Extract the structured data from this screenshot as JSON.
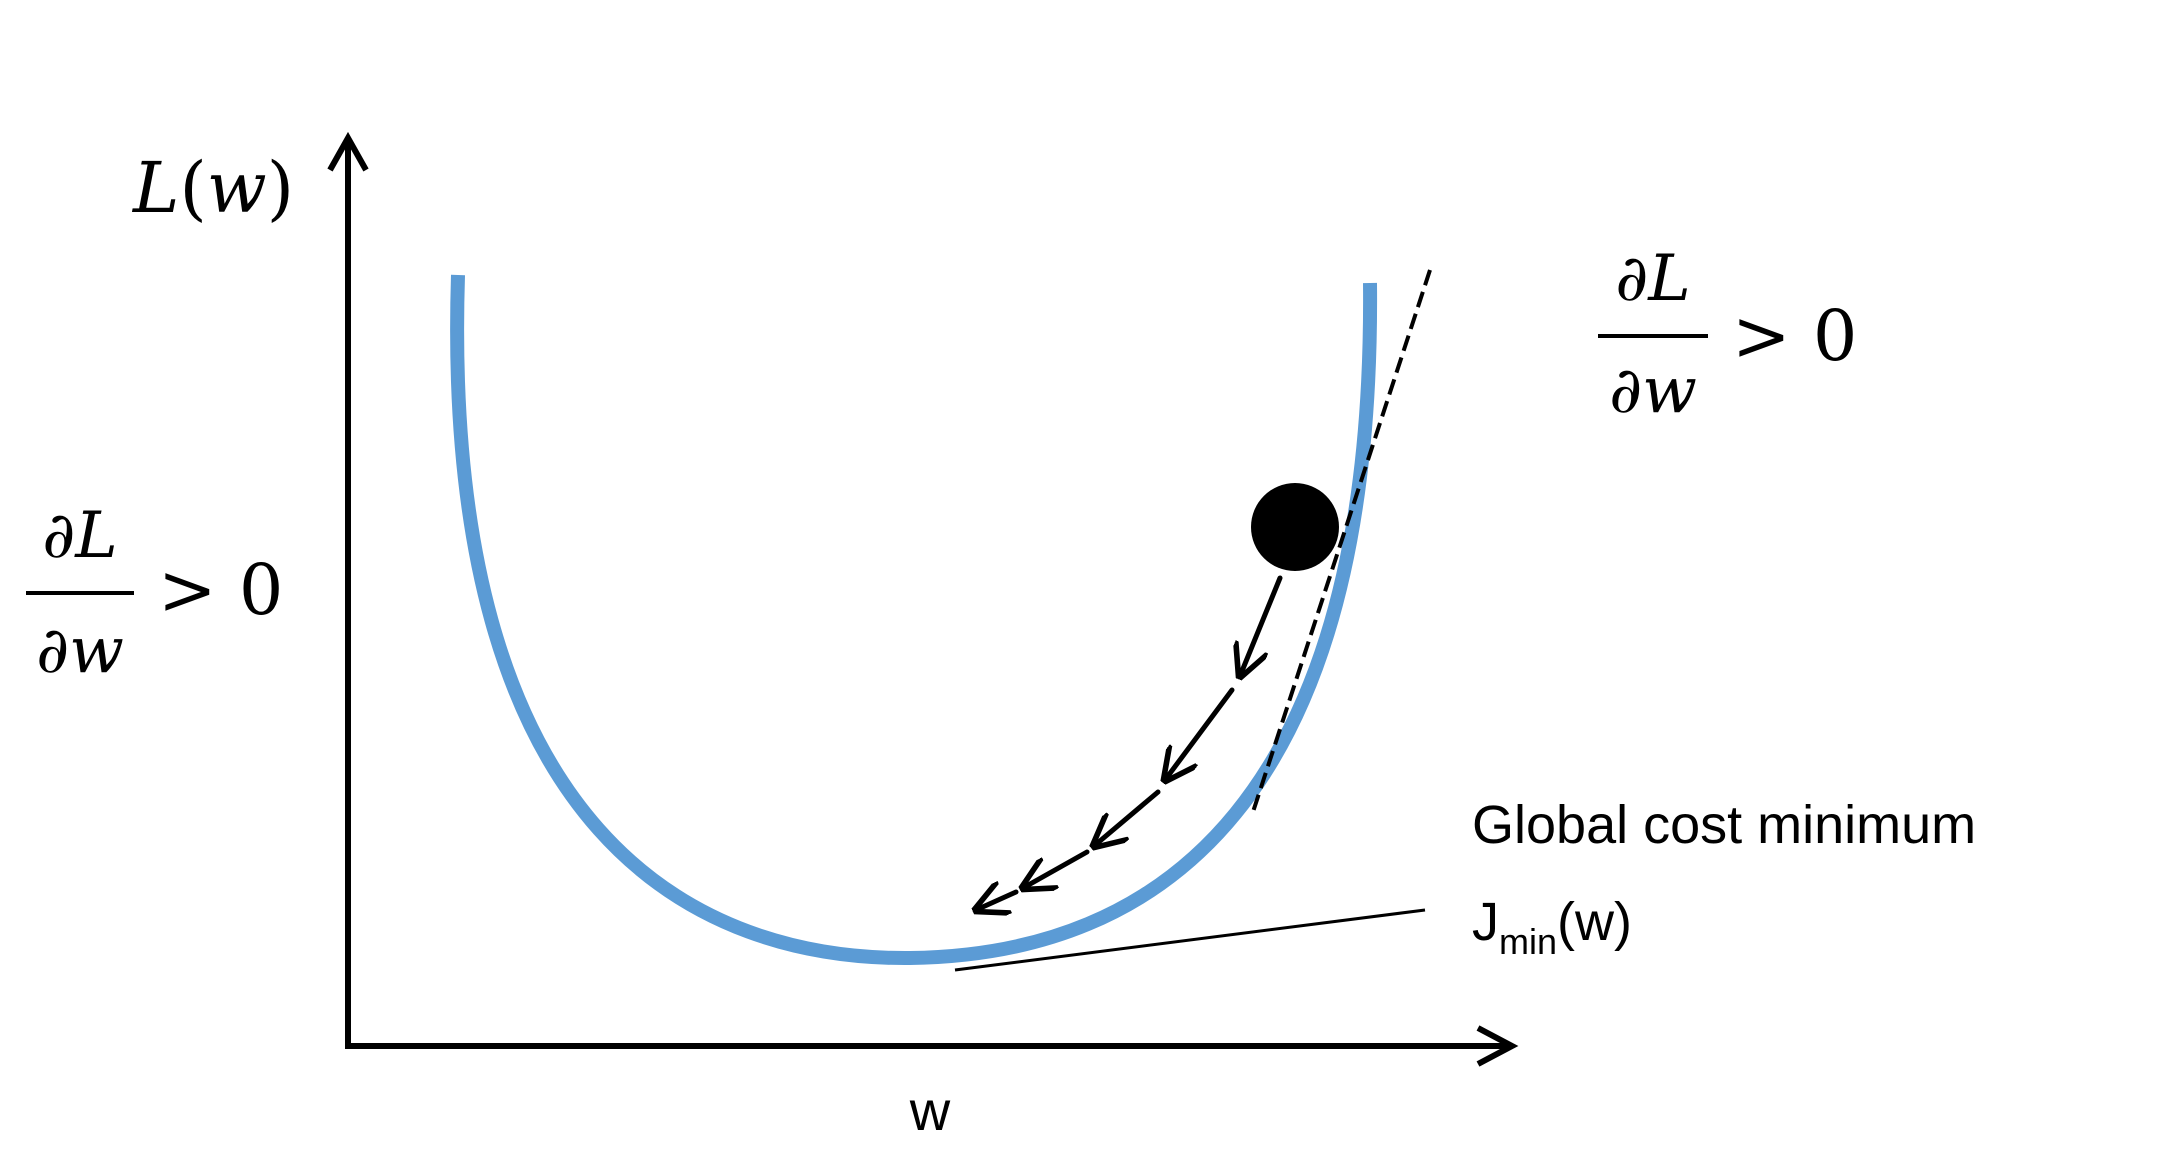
{
  "axes": {
    "y_label_fn": "L",
    "y_label_open": "(",
    "y_label_var": "w",
    "y_label_close": ")",
    "x_label": "w"
  },
  "derivative_right": {
    "numerator_d": "∂",
    "numerator_var": "L",
    "denominator_d": "∂",
    "denominator_var": "w",
    "relation": "> 0"
  },
  "derivative_left": {
    "numerator_d": "∂",
    "numerator_var": "L",
    "denominator_d": "∂",
    "denominator_var": "w",
    "relation": "> 0"
  },
  "annotation": {
    "line1": "Global cost minimum",
    "j": "J",
    "sub": "min",
    "arg": "(w)"
  },
  "colors": {
    "curve": "#5b9bd5",
    "ink": "#000000"
  },
  "icons": {
    "ball": "solid-circle",
    "steps": "arrow-down-left"
  }
}
